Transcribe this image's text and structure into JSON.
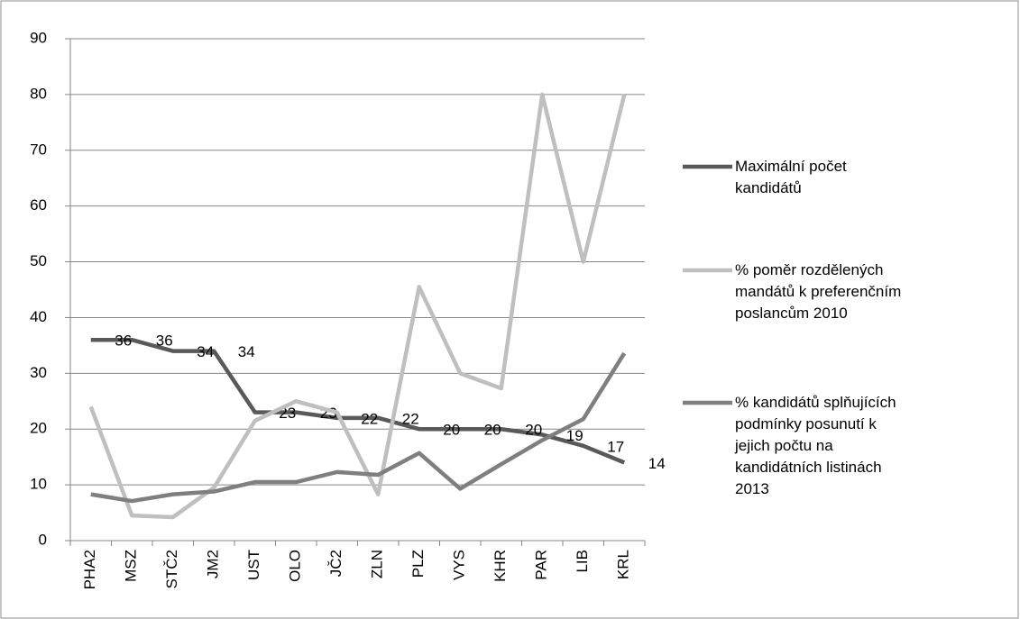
{
  "chart_data": {
    "type": "line",
    "categories": [
      "PHA2",
      "MSZ",
      "STČ2",
      "JM2",
      "UST",
      "OLO",
      "JČ2",
      "ZLN",
      "PLZ",
      "VYS",
      "KHR",
      "PAR",
      "LIB",
      "KRL"
    ],
    "series": [
      {
        "name": "Maximální počet kandidátů",
        "color": "#595959",
        "values": [
          36,
          36,
          34,
          34,
          23,
          23,
          22,
          22,
          20,
          20,
          20,
          19,
          17,
          14
        ],
        "data_labels": true
      },
      {
        "name": "% poměr rozdělených mandátů k preferenčním poslancům 2010",
        "color": "#bfbfbf",
        "values": [
          24,
          4.5,
          4.2,
          9.5,
          21.5,
          25,
          23,
          8.3,
          45.5,
          30,
          27.3,
          80,
          50,
          80
        ]
      },
      {
        "name": "% kandidátů splňujících podmínky posunutí k jejich počtu na kandidátních listinách 2013",
        "color": "#7f7f7f",
        "values": [
          8.3,
          7.1,
          8.3,
          8.8,
          10.5,
          10.5,
          12.3,
          11.8,
          15.7,
          9.3,
          13.7,
          18,
          21.8,
          33.6
        ]
      }
    ],
    "ylim": [
      0,
      90
    ],
    "yticks": [
      0,
      10,
      20,
      30,
      40,
      50,
      60,
      70,
      80,
      90
    ],
    "grid": true,
    "legend": "right"
  }
}
